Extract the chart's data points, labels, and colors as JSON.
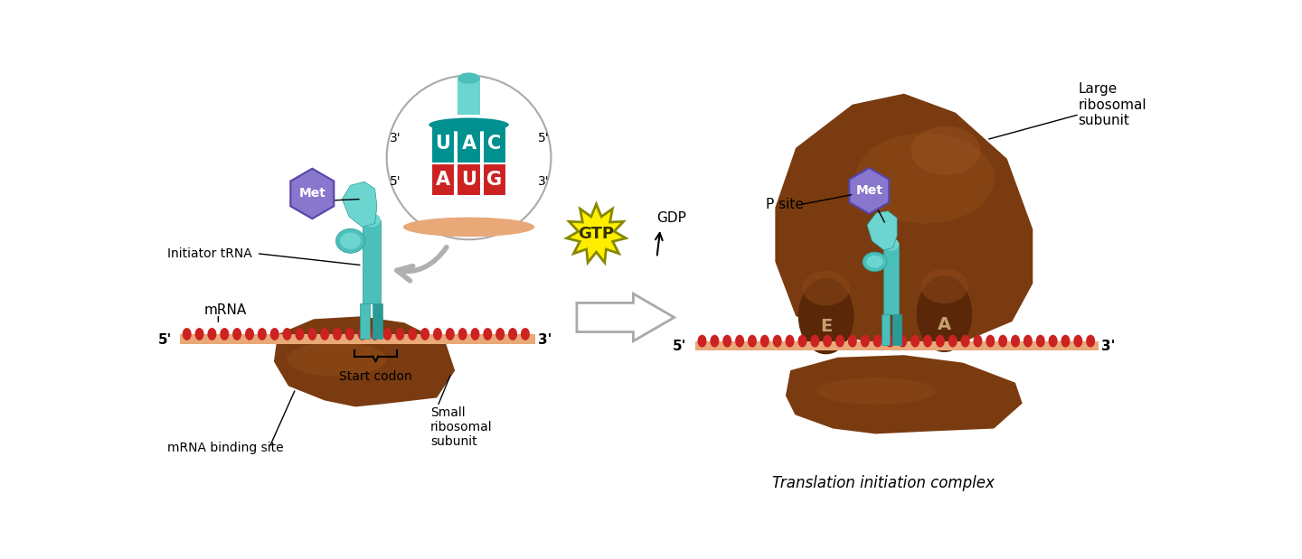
{
  "bg_color": "#ffffff",
  "labels": {
    "initiator_tRNA": "Initiator tRNA",
    "mRNA": "mRNA",
    "start_codon": "Start codon",
    "small_subunit": "Small\nribosomal\nsubunit",
    "mRNA_binding_site": "mRNA binding site",
    "large_subunit": "Large\nribosomal\nsubunit",
    "p_site": "P site",
    "translation_complex": "Translation initiation complex",
    "GTP": "GTP",
    "GDP": "GDP",
    "Met": "Met",
    "E_site": "E",
    "A_site": "A"
  },
  "colors": {
    "tRNA_teal": "#4bbfba",
    "tRNA_teal_dark": "#2a9a96",
    "tRNA_teal_light": "#6dd5d0",
    "ribosome_brown": "#7a3b10",
    "ribosome_brown_mid": "#8f4a18",
    "ribosome_brown_light": "#a05828",
    "mRNA_strand": "#e8a878",
    "mRNA_bumps": "#cc2222",
    "met_purple": "#8877cc",
    "met_purple_edge": "#5544aa",
    "gtp_yellow": "#ffee00",
    "gtp_outline": "#888800",
    "arrow_gray": "#b0b0b0",
    "codon_teal": "#009090",
    "anticodon_red": "#cc2222",
    "white": "#ffffff",
    "black": "#000000",
    "circle_outline": "#aaaaaa",
    "ea_text": "#c8a070",
    "ea_bump": "#5a2808"
  },
  "figsize": [
    14.4,
    6.19
  ],
  "dpi": 100
}
